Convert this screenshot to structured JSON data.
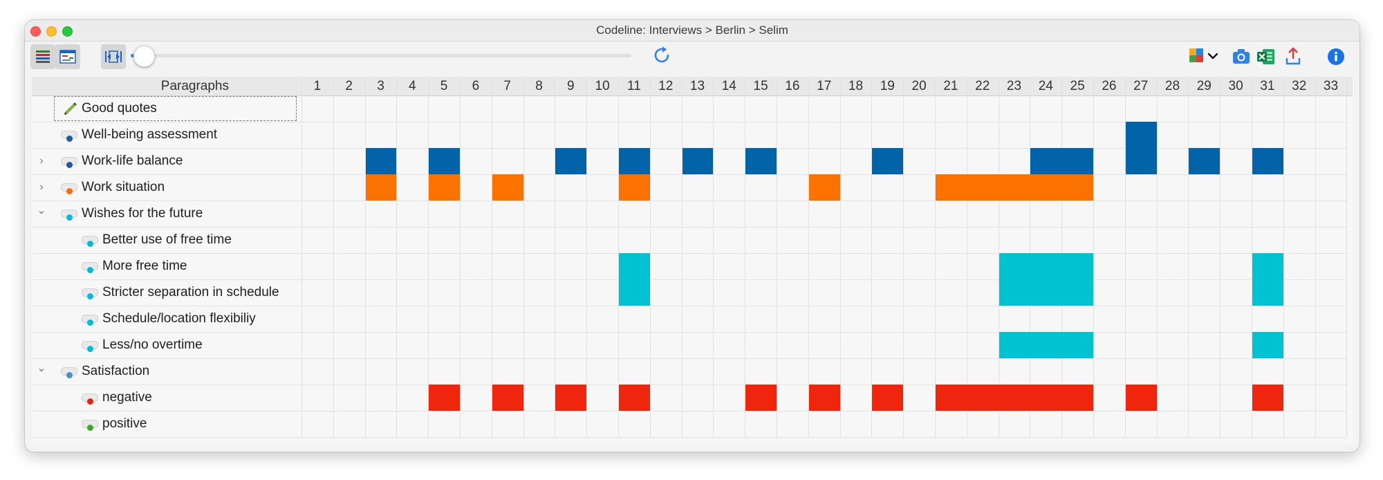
{
  "window": {
    "title": "Codeline: Interviews > Berlin > Selim"
  },
  "toolbar": {
    "buttons": [
      {
        "name": "code-view-icon",
        "pressed": true
      },
      {
        "name": "document-view-icon",
        "pressed": false
      },
      {
        "name": "fit-width-icon",
        "pressed": true
      }
    ],
    "zoom_slider_value": 0.02,
    "right_icons": [
      "refresh-icon",
      "code-color-menu-icon",
      "snapshot-icon",
      "excel-export-icon",
      "export-icon",
      "info-icon"
    ]
  },
  "grid": {
    "paragraphs_label": "Paragraphs",
    "columns": [
      "1",
      "2",
      "3",
      "4",
      "5",
      "6",
      "7",
      "8",
      "9",
      "10",
      "11",
      "12",
      "13",
      "14",
      "15",
      "16",
      "17",
      "18",
      "19",
      "20",
      "21",
      "22",
      "23",
      "24",
      "25",
      "26",
      "27",
      "28",
      "29",
      "30",
      "31",
      "32",
      "33"
    ],
    "rows": [
      {
        "label": "Good quotes",
        "level": 0,
        "chevron": "",
        "icon": "pencil",
        "color": ""
      },
      {
        "label": "Well-being assessment",
        "level": 0,
        "chevron": "",
        "icon": "toggle",
        "color": "#1f5b99"
      },
      {
        "label": "Work-life balance",
        "level": 0,
        "chevron": "›",
        "icon": "toggle",
        "color": "#1f5b99"
      },
      {
        "label": "Work situation",
        "level": 0,
        "chevron": "›",
        "icon": "toggle",
        "color": "#f57000"
      },
      {
        "label": "Wishes for the future",
        "level": 0,
        "chevron": "⌄",
        "icon": "toggle",
        "color": "#00bcd4"
      },
      {
        "label": "Better use of free time",
        "level": 1,
        "chevron": "",
        "icon": "toggle",
        "color": "#00bcd4"
      },
      {
        "label": "More free time",
        "level": 1,
        "chevron": "",
        "icon": "toggle",
        "color": "#00bcd4"
      },
      {
        "label": "Stricter separation in schedule",
        "level": 1,
        "chevron": "",
        "icon": "toggle",
        "color": "#00bcd4"
      },
      {
        "label": "Schedule/location flexibiliy",
        "level": 1,
        "chevron": "",
        "icon": "toggle",
        "color": "#00bcd4"
      },
      {
        "label": "Less/no overtime",
        "level": 1,
        "chevron": "",
        "icon": "toggle",
        "color": "#00bcd4"
      },
      {
        "label": "Satisfaction",
        "level": 0,
        "chevron": "⌄",
        "icon": "toggle",
        "color": "#4a90c8"
      },
      {
        "label": "negative",
        "level": 1,
        "chevron": "",
        "icon": "toggle",
        "color": "#e62310"
      },
      {
        "label": "positive",
        "level": 1,
        "chevron": "",
        "icon": "toggle",
        "color": "#3aa62a"
      }
    ],
    "segments": [
      {
        "row": 1,
        "row_span": 2,
        "from": 27,
        "to": 27,
        "color": "#0263a8"
      },
      {
        "row": 2,
        "from": 3,
        "to": 3,
        "color": "#0263a8"
      },
      {
        "row": 2,
        "from": 5,
        "to": 5,
        "color": "#0263a8"
      },
      {
        "row": 2,
        "from": 9,
        "to": 9,
        "color": "#0263a8"
      },
      {
        "row": 2,
        "from": 11,
        "to": 11,
        "color": "#0263a8"
      },
      {
        "row": 2,
        "from": 13,
        "to": 13,
        "color": "#0263a8"
      },
      {
        "row": 2,
        "from": 15,
        "to": 15,
        "color": "#0263a8"
      },
      {
        "row": 2,
        "from": 19,
        "to": 19,
        "color": "#0263a8"
      },
      {
        "row": 2,
        "from": 24,
        "to": 25,
        "color": "#0263a8"
      },
      {
        "row": 2,
        "from": 29,
        "to": 29,
        "color": "#0263a8"
      },
      {
        "row": 2,
        "from": 31,
        "to": 31,
        "color": "#0263a8"
      },
      {
        "row": 3,
        "from": 3,
        "to": 3,
        "color": "#fb7200"
      },
      {
        "row": 3,
        "from": 5,
        "to": 5,
        "color": "#fb7200"
      },
      {
        "row": 3,
        "from": 7,
        "to": 7,
        "color": "#fb7200"
      },
      {
        "row": 3,
        "from": 11,
        "to": 11,
        "color": "#fb7200"
      },
      {
        "row": 3,
        "from": 17,
        "to": 17,
        "color": "#fb7200"
      },
      {
        "row": 3,
        "from": 21,
        "to": 25,
        "color": "#fb7200"
      },
      {
        "row": 6,
        "row_span": 2,
        "from": 11,
        "to": 11,
        "color": "#00c2d1"
      },
      {
        "row": 6,
        "row_span": 2,
        "from": 23,
        "to": 25,
        "color": "#00c2d1"
      },
      {
        "row": 6,
        "row_span": 2,
        "from": 31,
        "to": 31,
        "color": "#00c2d1"
      },
      {
        "row": 9,
        "from": 23,
        "to": 25,
        "color": "#00c2d1"
      },
      {
        "row": 9,
        "from": 31,
        "to": 31,
        "color": "#00c2d1"
      },
      {
        "row": 11,
        "from": 5,
        "to": 5,
        "color": "#f0250e"
      },
      {
        "row": 11,
        "from": 7,
        "to": 7,
        "color": "#f0250e"
      },
      {
        "row": 11,
        "from": 9,
        "to": 9,
        "color": "#f0250e"
      },
      {
        "row": 11,
        "from": 11,
        "to": 11,
        "color": "#f0250e"
      },
      {
        "row": 11,
        "from": 15,
        "to": 15,
        "color": "#f0250e"
      },
      {
        "row": 11,
        "from": 17,
        "to": 17,
        "color": "#f0250e"
      },
      {
        "row": 11,
        "from": 19,
        "to": 19,
        "color": "#f0250e"
      },
      {
        "row": 11,
        "from": 21,
        "to": 25,
        "color": "#f0250e"
      },
      {
        "row": 11,
        "from": 27,
        "to": 27,
        "color": "#f0250e"
      },
      {
        "row": 11,
        "from": 31,
        "to": 31,
        "color": "#f0250e"
      }
    ]
  }
}
